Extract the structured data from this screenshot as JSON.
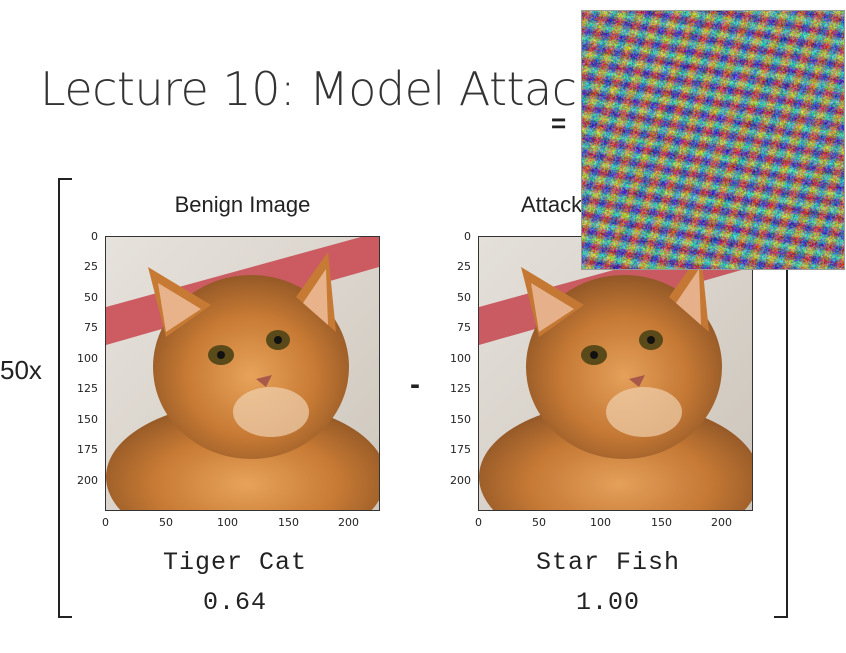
{
  "slide": {
    "title": "Lecture 10: Model Attack",
    "equals": "=",
    "multiplier": "50x",
    "minus": "-"
  },
  "panels": [
    {
      "title": "Benign Image",
      "label": "Tiger Cat",
      "score": "0.64",
      "y_ticks": [
        "0",
        "25",
        "50",
        "75",
        "100",
        "125",
        "150",
        "175",
        "200"
      ],
      "x_ticks": [
        "0",
        "50",
        "100",
        "150",
        "200"
      ]
    },
    {
      "title": "Attack",
      "label": "Star Fish",
      "score": "1.00",
      "y_ticks": [
        "0",
        "25",
        "50",
        "75",
        "100",
        "125",
        "150",
        "175",
        "200"
      ],
      "x_ticks": [
        "0",
        "50",
        "100",
        "150",
        "200"
      ]
    }
  ],
  "noise": {
    "icon": "perturbation-noise-icon"
  }
}
